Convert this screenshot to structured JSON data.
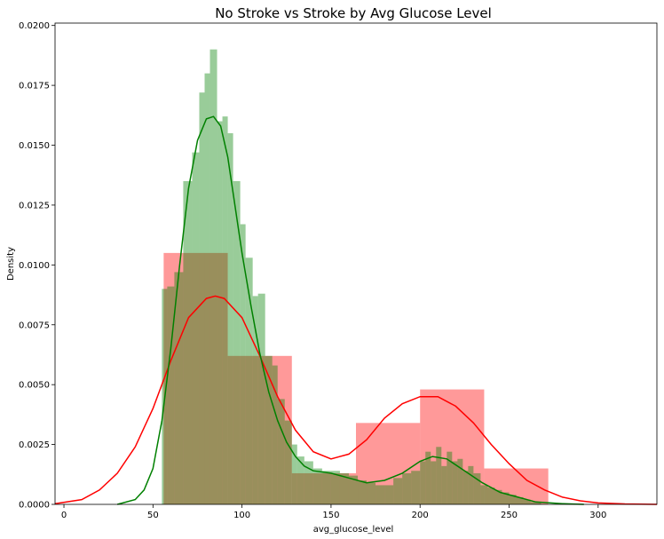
{
  "chart_data": {
    "type": "histogram",
    "title": "No Stroke vs Stroke by Avg Glucose Level",
    "xlabel": "avg_glucose_level",
    "ylabel": "Density",
    "xlim": [
      -5,
      333
    ],
    "ylim": [
      0,
      0.0201
    ],
    "xticks": [
      0,
      50,
      100,
      150,
      200,
      250,
      300,
      350
    ],
    "yticks": [
      0.0,
      0.0025,
      0.005,
      0.0075,
      0.01,
      0.0125,
      0.015,
      0.0175,
      0.02
    ],
    "grid": false,
    "legend": "none",
    "series": [
      {
        "color": "#ff0000",
        "opacity": 0.4,
        "bins": [
          {
            "x0": 56,
            "x1": 92,
            "y": 0.0105
          },
          {
            "x0": 92,
            "x1": 128,
            "y": 0.0062
          },
          {
            "x0": 128,
            "x1": 164,
            "y": 0.0013
          },
          {
            "x0": 164,
            "x1": 200,
            "y": 0.0034
          },
          {
            "x0": 200,
            "x1": 236,
            "y": 0.0048
          },
          {
            "x0": 236,
            "x1": 272,
            "y": 0.0015
          }
        ],
        "kde": [
          [
            -5,
            3e-05
          ],
          [
            10,
            0.0002
          ],
          [
            20,
            0.0006
          ],
          [
            30,
            0.0013
          ],
          [
            40,
            0.0024
          ],
          [
            50,
            0.004
          ],
          [
            60,
            0.006
          ],
          [
            70,
            0.0078
          ],
          [
            80,
            0.0086
          ],
          [
            85,
            0.0087
          ],
          [
            90,
            0.0086
          ],
          [
            100,
            0.0078
          ],
          [
            110,
            0.0062
          ],
          [
            120,
            0.0045
          ],
          [
            130,
            0.0031
          ],
          [
            140,
            0.0022
          ],
          [
            150,
            0.0019
          ],
          [
            160,
            0.0021
          ],
          [
            170,
            0.0027
          ],
          [
            180,
            0.0036
          ],
          [
            190,
            0.0042
          ],
          [
            200,
            0.0045
          ],
          [
            210,
            0.0045
          ],
          [
            220,
            0.0041
          ],
          [
            230,
            0.0034
          ],
          [
            240,
            0.0025
          ],
          [
            250,
            0.0017
          ],
          [
            260,
            0.001
          ],
          [
            270,
            0.0006
          ],
          [
            280,
            0.0003
          ],
          [
            290,
            0.00015
          ],
          [
            300,
            6e-05
          ],
          [
            315,
            2e-05
          ],
          [
            333,
            0.0
          ]
        ]
      },
      {
        "color": "#008000",
        "opacity": 0.4,
        "bins": [
          {
            "x0": 55,
            "x1": 58,
            "y": 0.009
          },
          {
            "x0": 58,
            "x1": 62,
            "y": 0.0091
          },
          {
            "x0": 62,
            "x1": 67,
            "y": 0.0097
          },
          {
            "x0": 67,
            "x1": 72,
            "y": 0.0135
          },
          {
            "x0": 72,
            "x1": 76,
            "y": 0.0147
          },
          {
            "x0": 76,
            "x1": 79,
            "y": 0.0172
          },
          {
            "x0": 79,
            "x1": 82,
            "y": 0.018
          },
          {
            "x0": 82,
            "x1": 86,
            "y": 0.019
          },
          {
            "x0": 86,
            "x1": 89,
            "y": 0.016
          },
          {
            "x0": 89,
            "x1": 92,
            "y": 0.0162
          },
          {
            "x0": 92,
            "x1": 95,
            "y": 0.0155
          },
          {
            "x0": 95,
            "x1": 99,
            "y": 0.0135
          },
          {
            "x0": 99,
            "x1": 102,
            "y": 0.0117
          },
          {
            "x0": 102,
            "x1": 106,
            "y": 0.0103
          },
          {
            "x0": 106,
            "x1": 109,
            "y": 0.0087
          },
          {
            "x0": 109,
            "x1": 113,
            "y": 0.0088
          },
          {
            "x0": 113,
            "x1": 117,
            "y": 0.0062
          },
          {
            "x0": 117,
            "x1": 120,
            "y": 0.0058
          },
          {
            "x0": 120,
            "x1": 124,
            "y": 0.0044
          },
          {
            "x0": 124,
            "x1": 128,
            "y": 0.0035
          },
          {
            "x0": 128,
            "x1": 131,
            "y": 0.0025
          },
          {
            "x0": 131,
            "x1": 135,
            "y": 0.002
          },
          {
            "x0": 135,
            "x1": 140,
            "y": 0.0018
          },
          {
            "x0": 140,
            "x1": 145,
            "y": 0.0015
          },
          {
            "x0": 145,
            "x1": 150,
            "y": 0.0014
          },
          {
            "x0": 150,
            "x1": 155,
            "y": 0.0014
          },
          {
            "x0": 155,
            "x1": 160,
            "y": 0.0013
          },
          {
            "x0": 160,
            "x1": 165,
            "y": 0.0012
          },
          {
            "x0": 165,
            "x1": 170,
            "y": 0.001
          },
          {
            "x0": 170,
            "x1": 175,
            "y": 0.0009
          },
          {
            "x0": 175,
            "x1": 180,
            "y": 0.0008
          },
          {
            "x0": 180,
            "x1": 185,
            "y": 0.0008
          },
          {
            "x0": 185,
            "x1": 190,
            "y": 0.0011
          },
          {
            "x0": 190,
            "x1": 195,
            "y": 0.0013
          },
          {
            "x0": 195,
            "x1": 200,
            "y": 0.0014
          },
          {
            "x0": 200,
            "x1": 203,
            "y": 0.0018
          },
          {
            "x0": 203,
            "x1": 206,
            "y": 0.0022
          },
          {
            "x0": 206,
            "x1": 209,
            "y": 0.0018
          },
          {
            "x0": 209,
            "x1": 212,
            "y": 0.0024
          },
          {
            "x0": 212,
            "x1": 215,
            "y": 0.0016
          },
          {
            "x0": 215,
            "x1": 218,
            "y": 0.0022
          },
          {
            "x0": 218,
            "x1": 221,
            "y": 0.0018
          },
          {
            "x0": 221,
            "x1": 224,
            "y": 0.0019
          },
          {
            "x0": 224,
            "x1": 227,
            "y": 0.0014
          },
          {
            "x0": 227,
            "x1": 230,
            "y": 0.0016
          },
          {
            "x0": 230,
            "x1": 234,
            "y": 0.0013
          },
          {
            "x0": 234,
            "x1": 238,
            "y": 0.0008
          },
          {
            "x0": 238,
            "x1": 242,
            "y": 0.0007
          },
          {
            "x0": 242,
            "x1": 246,
            "y": 0.0006
          },
          {
            "x0": 246,
            "x1": 250,
            "y": 0.0005
          },
          {
            "x0": 250,
            "x1": 254,
            "y": 0.0004
          },
          {
            "x0": 254,
            "x1": 258,
            "y": 0.0003
          },
          {
            "x0": 258,
            "x1": 262,
            "y": 0.0002
          },
          {
            "x0": 262,
            "x1": 268,
            "y": 0.0001
          }
        ],
        "kde": [
          [
            30,
            0.0
          ],
          [
            40,
            0.0002
          ],
          [
            45,
            0.0006
          ],
          [
            50,
            0.0015
          ],
          [
            55,
            0.0035
          ],
          [
            60,
            0.0065
          ],
          [
            65,
            0.01
          ],
          [
            70,
            0.0132
          ],
          [
            75,
            0.0152
          ],
          [
            80,
            0.0161
          ],
          [
            84,
            0.0162
          ],
          [
            88,
            0.0158
          ],
          [
            92,
            0.0145
          ],
          [
            96,
            0.0125
          ],
          [
            100,
            0.0105
          ],
          [
            105,
            0.0083
          ],
          [
            110,
            0.0063
          ],
          [
            115,
            0.0047
          ],
          [
            120,
            0.0035
          ],
          [
            125,
            0.0026
          ],
          [
            130,
            0.002
          ],
          [
            135,
            0.0016
          ],
          [
            140,
            0.0014
          ],
          [
            150,
            0.0013
          ],
          [
            160,
            0.0011
          ],
          [
            170,
            0.0009
          ],
          [
            180,
            0.001
          ],
          [
            190,
            0.0013
          ],
          [
            200,
            0.0018
          ],
          [
            207,
            0.002
          ],
          [
            215,
            0.0019
          ],
          [
            225,
            0.0014
          ],
          [
            235,
            0.0009
          ],
          [
            245,
            0.0005
          ],
          [
            255,
            0.0003
          ],
          [
            265,
            0.0001
          ],
          [
            280,
            3e-05
          ],
          [
            292,
            0.0
          ]
        ]
      }
    ]
  }
}
